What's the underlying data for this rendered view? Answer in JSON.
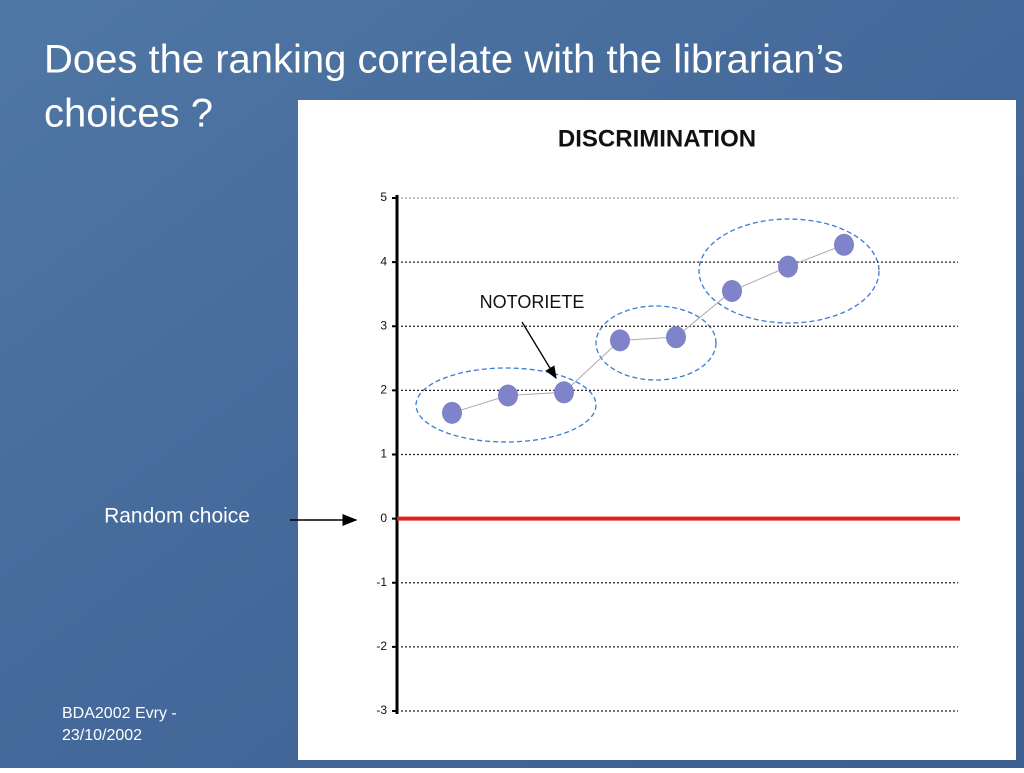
{
  "slide": {
    "title": "Does the ranking correlate with the librarian’s choices ?",
    "side_label": "Random choice",
    "footer": [
      "BDA2002 Evry -",
      "23/10/2002"
    ]
  },
  "chart_data": {
    "type": "line",
    "title": "DISCRIMINATION",
    "annotation": "NOTORIETE",
    "categories": [
      null,
      null,
      null,
      null,
      null,
      null,
      null,
      null
    ],
    "series": [
      {
        "color": "#7f83c9",
        "values": [
          1.65,
          1.92,
          1.97,
          2.78,
          2.83,
          3.55,
          3.93,
          4.27
        ]
      }
    ],
    "reference_line": {
      "value": 0,
      "color": "#e02020"
    },
    "ylim": [
      -3,
      5
    ],
    "yticks": [
      -3,
      -2,
      -1,
      0,
      1,
      2,
      3,
      4,
      5
    ],
    "grid": true
  }
}
